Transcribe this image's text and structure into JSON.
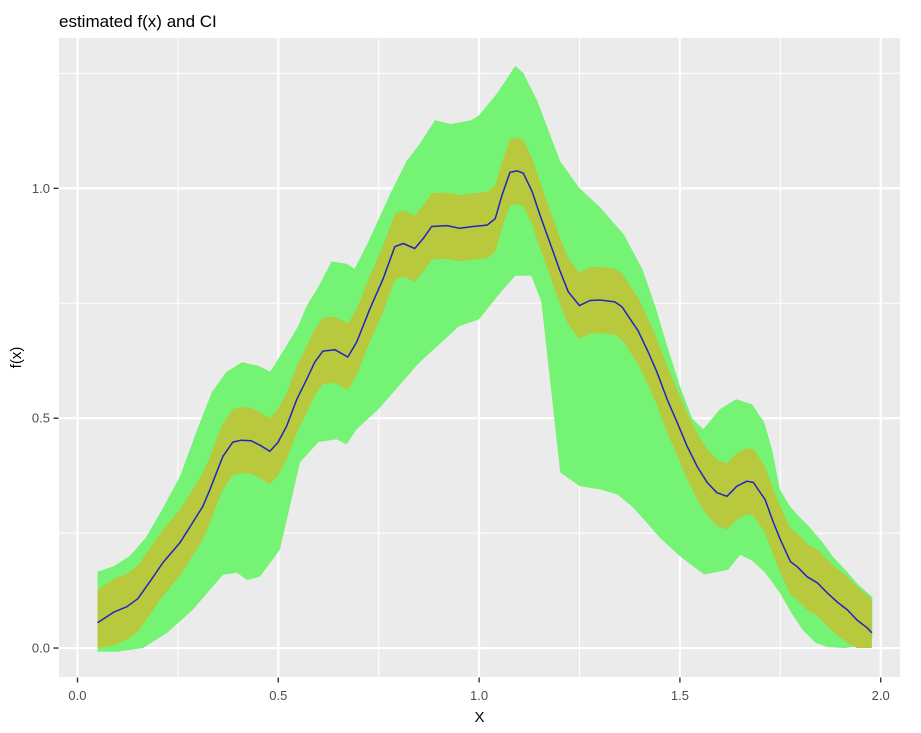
{
  "title": "estimated f(x) and CI",
  "chart_data": {
    "type": "area",
    "title": "estimated f(x) and CI",
    "xlabel": "X",
    "ylabel": "f(x)",
    "xlim": [
      -0.046,
      2.048
    ],
    "ylim": [
      -0.063,
      1.327
    ],
    "x_ticks": [
      0.0,
      0.5,
      1.0,
      1.5,
      2.0
    ],
    "x_tick_labels": [
      "0.0",
      "0.5",
      "1.0",
      "1.5",
      "2.0"
    ],
    "y_ticks": [
      0.0,
      0.5,
      1.0
    ],
    "y_tick_labels": [
      "0.0",
      "0.5",
      "1.0"
    ],
    "x_minor_ticks": [
      0.25,
      0.75,
      1.25,
      1.75
    ],
    "y_minor_ticks": [
      0.25,
      0.75,
      1.25
    ],
    "grid": true,
    "legend": "none",
    "panel_bg": "#EBEBEB",
    "grid_color": "#FFFFFF",
    "tick_mark_color": "#333333",
    "series": [
      {
        "name": "estimate-line",
        "type": "line",
        "color": "#2323C3",
        "points": [
          [
            0.05,
            0.055
          ],
          [
            0.09,
            0.078
          ],
          [
            0.123,
            0.09
          ],
          [
            0.15,
            0.107
          ],
          [
            0.18,
            0.144
          ],
          [
            0.213,
            0.186
          ],
          [
            0.255,
            0.229
          ],
          [
            0.287,
            0.273
          ],
          [
            0.312,
            0.308
          ],
          [
            0.33,
            0.345
          ],
          [
            0.362,
            0.417
          ],
          [
            0.387,
            0.448
          ],
          [
            0.408,
            0.452
          ],
          [
            0.432,
            0.451
          ],
          [
            0.455,
            0.441
          ],
          [
            0.479,
            0.428
          ],
          [
            0.499,
            0.447
          ],
          [
            0.521,
            0.483
          ],
          [
            0.546,
            0.541
          ],
          [
            0.571,
            0.585
          ],
          [
            0.591,
            0.622
          ],
          [
            0.611,
            0.646
          ],
          [
            0.641,
            0.649
          ],
          [
            0.673,
            0.633
          ],
          [
            0.695,
            0.665
          ],
          [
            0.728,
            0.738
          ],
          [
            0.761,
            0.803
          ],
          [
            0.79,
            0.873
          ],
          [
            0.811,
            0.88
          ],
          [
            0.84,
            0.869
          ],
          [
            0.861,
            0.891
          ],
          [
            0.882,
            0.917
          ],
          [
            0.919,
            0.919
          ],
          [
            0.952,
            0.913
          ],
          [
            0.985,
            0.917
          ],
          [
            1.02,
            0.92
          ],
          [
            1.04,
            0.934
          ],
          [
            1.057,
            0.985
          ],
          [
            1.077,
            1.035
          ],
          [
            1.095,
            1.038
          ],
          [
            1.11,
            1.033
          ],
          [
            1.132,
            0.993
          ],
          [
            1.152,
            0.941
          ],
          [
            1.177,
            0.88
          ],
          [
            1.202,
            0.819
          ],
          [
            1.222,
            0.775
          ],
          [
            1.25,
            0.745
          ],
          [
            1.276,
            0.756
          ],
          [
            1.301,
            0.757
          ],
          [
            1.338,
            0.753
          ],
          [
            1.356,
            0.742
          ],
          [
            1.376,
            0.716
          ],
          [
            1.396,
            0.69
          ],
          [
            1.421,
            0.644
          ],
          [
            1.443,
            0.6
          ],
          [
            1.468,
            0.541
          ],
          [
            1.493,
            0.491
          ],
          [
            1.518,
            0.439
          ],
          [
            1.543,
            0.395
          ],
          [
            1.568,
            0.36
          ],
          [
            1.592,
            0.338
          ],
          [
            1.617,
            0.33
          ],
          [
            1.642,
            0.352
          ],
          [
            1.667,
            0.363
          ],
          [
            1.683,
            0.36
          ],
          [
            1.712,
            0.323
          ],
          [
            1.732,
            0.275
          ],
          [
            1.75,
            0.236
          ],
          [
            1.775,
            0.188
          ],
          [
            1.792,
            0.177
          ],
          [
            1.817,
            0.155
          ],
          [
            1.842,
            0.142
          ],
          [
            1.867,
            0.12
          ],
          [
            1.892,
            0.1
          ],
          [
            1.917,
            0.083
          ],
          [
            1.941,
            0.061
          ],
          [
            1.966,
            0.044
          ],
          [
            1.978,
            0.033
          ]
        ]
      },
      {
        "name": "inner-ci-band",
        "type": "band",
        "color": "#B8C93E",
        "derived_from": "estimate-line",
        "half_width": 0.072,
        "lower_clamp": 0.0
      },
      {
        "name": "outer-ci-band",
        "type": "band",
        "color": "#74F374",
        "upper": [
          [
            0.05,
            0.166
          ],
          [
            0.09,
            0.178
          ],
          [
            0.13,
            0.2
          ],
          [
            0.17,
            0.24
          ],
          [
            0.21,
            0.3
          ],
          [
            0.255,
            0.373
          ],
          [
            0.3,
            0.48
          ],
          [
            0.335,
            0.557
          ],
          [
            0.37,
            0.6
          ],
          [
            0.41,
            0.622
          ],
          [
            0.45,
            0.614
          ],
          [
            0.48,
            0.601
          ],
          [
            0.52,
            0.657
          ],
          [
            0.55,
            0.701
          ],
          [
            0.571,
            0.745
          ],
          [
            0.6,
            0.786
          ],
          [
            0.633,
            0.841
          ],
          [
            0.67,
            0.836
          ],
          [
            0.69,
            0.825
          ],
          [
            0.72,
            0.876
          ],
          [
            0.736,
            0.906
          ],
          [
            0.78,
            0.99
          ],
          [
            0.82,
            1.06
          ],
          [
            0.853,
            1.098
          ],
          [
            0.89,
            1.148
          ],
          [
            0.93,
            1.14
          ],
          [
            0.98,
            1.148
          ],
          [
            1.0,
            1.159
          ],
          [
            1.045,
            1.207
          ],
          [
            1.09,
            1.266
          ],
          [
            1.11,
            1.251
          ],
          [
            1.145,
            1.19
          ],
          [
            1.177,
            1.116
          ],
          [
            1.202,
            1.059
          ],
          [
            1.25,
            1.0
          ],
          [
            1.3,
            0.96
          ],
          [
            1.36,
            0.9
          ],
          [
            1.406,
            0.825
          ],
          [
            1.44,
            0.74
          ],
          [
            1.468,
            0.657
          ],
          [
            1.5,
            0.57
          ],
          [
            1.53,
            0.5
          ],
          [
            1.558,
            0.476
          ],
          [
            1.6,
            0.52
          ],
          [
            1.64,
            0.541
          ],
          [
            1.68,
            0.53
          ],
          [
            1.71,
            0.49
          ],
          [
            1.73,
            0.43
          ],
          [
            1.749,
            0.345
          ],
          [
            1.774,
            0.308
          ],
          [
            1.799,
            0.284
          ],
          [
            1.824,
            0.262
          ],
          [
            1.854,
            0.231
          ],
          [
            1.881,
            0.199
          ],
          [
            1.916,
            0.166
          ],
          [
            1.944,
            0.138
          ],
          [
            1.979,
            0.111
          ]
        ],
        "lower": [
          [
            0.05,
            -0.008
          ],
          [
            0.1,
            -0.008
          ],
          [
            0.163,
            0.0
          ],
          [
            0.223,
            0.033
          ],
          [
            0.287,
            0.083
          ],
          [
            0.33,
            0.127
          ],
          [
            0.362,
            0.159
          ],
          [
            0.397,
            0.164
          ],
          [
            0.422,
            0.148
          ],
          [
            0.454,
            0.155
          ],
          [
            0.504,
            0.214
          ],
          [
            0.554,
            0.404
          ],
          [
            0.6,
            0.448
          ],
          [
            0.645,
            0.454
          ],
          [
            0.67,
            0.443
          ],
          [
            0.695,
            0.476
          ],
          [
            0.75,
            0.52
          ],
          [
            0.8,
            0.57
          ],
          [
            0.85,
            0.62
          ],
          [
            0.9,
            0.66
          ],
          [
            0.95,
            0.7
          ],
          [
            1.0,
            0.715
          ],
          [
            1.05,
            0.77
          ],
          [
            1.09,
            0.81
          ],
          [
            1.13,
            0.81
          ],
          [
            1.155,
            0.753
          ],
          [
            1.202,
            0.382
          ],
          [
            1.251,
            0.352
          ],
          [
            1.301,
            0.345
          ],
          [
            1.344,
            0.334
          ],
          [
            1.381,
            0.308
          ],
          [
            1.42,
            0.27
          ],
          [
            1.45,
            0.24
          ],
          [
            1.5,
            0.2
          ],
          [
            1.56,
            0.16
          ],
          [
            1.62,
            0.17
          ],
          [
            1.65,
            0.203
          ],
          [
            1.68,
            0.19
          ],
          [
            1.712,
            0.164
          ],
          [
            1.749,
            0.12
          ],
          [
            1.778,
            0.076
          ],
          [
            1.806,
            0.039
          ],
          [
            1.838,
            0.011
          ],
          [
            1.87,
            0.002
          ],
          [
            1.91,
            0.0
          ],
          [
            1.95,
            0.005
          ],
          [
            1.979,
            0.02
          ]
        ]
      }
    ]
  }
}
